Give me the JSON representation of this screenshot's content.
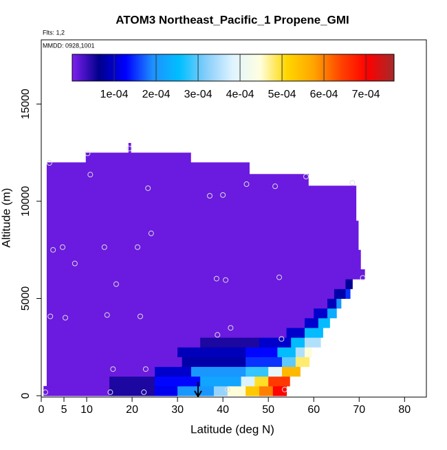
{
  "chart_data": {
    "type": "heatmap",
    "title": "ATOM3 Northeast_Pacific_1 Propene_GMI",
    "flights_note": "Flts: 1,2",
    "date_note": "MMDD: 0928,1001",
    "xlabel": "Latitude (deg N)",
    "ylabel": "Altitude (m)",
    "xlim": [
      0,
      84.8
    ],
    "ylim": [
      0,
      18300
    ],
    "xticks": [
      0,
      5,
      10,
      20,
      30,
      40,
      50,
      60,
      70,
      80
    ],
    "yticks": [
      0,
      5000,
      10000,
      15000
    ],
    "colorbar_lim": [
      0,
      0.000767
    ],
    "colorbar_ticks": [
      {
        "value": 0.0001,
        "label": "1e-04"
      },
      {
        "value": 0.0002,
        "label": "2e-04"
      },
      {
        "value": 0.0003,
        "label": "3e-04"
      },
      {
        "value": 0.0004,
        "label": "4e-04"
      },
      {
        "value": 0.0005,
        "label": "5e-04"
      },
      {
        "value": 0.0006,
        "label": "6e-04"
      },
      {
        "value": 0.0007,
        "label": "7e-04"
      }
    ],
    "colors": [
      "#7f1fef",
      "#00008b",
      "#0000ff",
      "#1e90ff",
      "#00bfff",
      "#87cefa",
      "#e0f4ff",
      "#ffffe0",
      "#ffd700",
      "#ffa500",
      "#ff4500",
      "#ff0000",
      "#a52a2a"
    ],
    "rows": [
      {
        "alt": [
          0,
          500
        ],
        "cells": [
          [
            0.5,
            15,
            1e-05
          ],
          [
            15,
            25,
            5e-05
          ],
          [
            25,
            30,
            0.00012
          ],
          [
            30,
            38,
            0.0002
          ],
          [
            38,
            41,
            0.00033
          ],
          [
            41,
            45,
            0.00045
          ],
          [
            45,
            48,
            0.00053
          ],
          [
            48,
            51,
            0.0006
          ],
          [
            51,
            54,
            0.0007
          ]
        ]
      },
      {
        "alt": [
          500,
          1000
        ],
        "cells": [
          [
            1.2,
            15,
            1e-05
          ],
          [
            15,
            25,
            5e-05
          ],
          [
            25,
            35,
            0.00013
          ],
          [
            35,
            44,
            0.00022
          ],
          [
            44,
            47,
            0.00038
          ],
          [
            47,
            50,
            0.0005
          ],
          [
            50,
            54.7,
            0.00065
          ]
        ]
      },
      {
        "alt": [
          1000,
          1500
        ],
        "cells": [
          [
            1.2,
            25,
            1e-05
          ],
          [
            25,
            33,
            0.0001
          ],
          [
            33,
            45,
            0.0002
          ],
          [
            45,
            50,
            0.00028
          ],
          [
            50,
            53,
            0.0004
          ],
          [
            53,
            57,
            0.00055
          ]
        ]
      },
      {
        "alt": [
          1500,
          2000
        ],
        "cells": [
          [
            1.2,
            31,
            1e-05
          ],
          [
            31,
            45,
            8e-05
          ],
          [
            45,
            53,
            0.00015
          ],
          [
            53,
            56,
            0.0003
          ],
          [
            56,
            59,
            0.00048
          ]
        ]
      },
      {
        "alt": [
          2000,
          2500
        ],
        "cells": [
          [
            1.2,
            30,
            1e-05
          ],
          [
            30,
            45,
            9e-05
          ],
          [
            45,
            52,
            0.00013
          ],
          [
            52,
            56,
            0.00025
          ],
          [
            56,
            58,
            0.00035
          ],
          [
            58,
            59.5,
            0.00045
          ]
        ]
      },
      {
        "alt": [
          2500,
          3000
        ],
        "cells": [
          [
            1.2,
            35,
            1e-05
          ],
          [
            35,
            48,
            5e-05
          ],
          [
            48,
            55,
            0.0001
          ],
          [
            55,
            58,
            0.00025
          ],
          [
            58,
            61.5,
            0.00035
          ]
        ]
      },
      {
        "alt": [
          3000,
          3500
        ],
        "cells": [
          [
            1.2,
            54,
            1e-05
          ],
          [
            54,
            58,
            0.0001
          ],
          [
            58,
            62,
            0.00025
          ]
        ]
      },
      {
        "alt": [
          3500,
          4000
        ],
        "cells": [
          [
            1.2,
            58,
            1e-05
          ],
          [
            58,
            61,
            0.0001
          ],
          [
            61,
            63.5,
            0.00025
          ]
        ]
      },
      {
        "alt": [
          4000,
          4500
        ],
        "cells": [
          [
            1.2,
            60,
            1e-05
          ],
          [
            60,
            63,
            0.0001
          ],
          [
            63,
            65,
            0.00023
          ]
        ]
      },
      {
        "alt": [
          4500,
          5000
        ],
        "cells": [
          [
            1.2,
            63,
            1e-05
          ],
          [
            63,
            65,
            9e-05
          ],
          [
            65,
            66,
            0.0002
          ]
        ]
      },
      {
        "alt": [
          5000,
          5500
        ],
        "cells": [
          [
            1.2,
            64.5,
            1e-05
          ],
          [
            64.5,
            67,
            8e-05
          ],
          [
            67,
            68,
            0.00015
          ]
        ]
      },
      {
        "alt": [
          5500,
          6000
        ],
        "cells": [
          [
            1.2,
            67,
            1e-05
          ],
          [
            67,
            68.5,
            7e-05
          ]
        ]
      },
      {
        "alt": [
          6000,
          6500
        ],
        "cells": [
          [
            1.2,
            71.2,
            1e-05
          ]
        ]
      },
      {
        "alt": [
          6500,
          7500
        ],
        "cells": [
          [
            1.2,
            70.3,
            1e-05
          ]
        ]
      },
      {
        "alt": [
          7500,
          9000
        ],
        "cells": [
          [
            1.2,
            69.8,
            1e-05
          ]
        ]
      },
      {
        "alt": [
          9000,
          10800
        ],
        "cells": [
          [
            1.2,
            69.3,
            1e-05
          ]
        ]
      },
      {
        "alt": [
          10800,
          11400
        ],
        "cells": [
          [
            1.2,
            58.8,
            1e-05
          ]
        ]
      },
      {
        "alt": [
          11400,
          12000
        ],
        "cells": [
          [
            1.2,
            45.8,
            1e-05
          ]
        ]
      },
      {
        "alt": [
          12000,
          12500
        ],
        "cells": [
          [
            9.8,
            32.9,
            1e-05
          ]
        ]
      },
      {
        "alt": [
          12500,
          13000
        ],
        "cells": [
          [
            19.2,
            19.7,
            1e-05
          ]
        ]
      }
    ],
    "points": {
      "lat": [
        0.9,
        15.2,
        22.6,
        41,
        53.6,
        15.8,
        23,
        52.9,
        38.8,
        41.7,
        2,
        5.3,
        14.5,
        21.8,
        16.5,
        38.6,
        40.6,
        52.4,
        70.8,
        7.4,
        2.6,
        4.7,
        13.9,
        21.2,
        24.2,
        37.1,
        40,
        23.5,
        45.2,
        51.5,
        58.3,
        68.5,
        10.8,
        1.8,
        10.2,
        19.4
      ],
      "alt": [
        180,
        180,
        180,
        320,
        320,
        1370,
        1370,
        2920,
        3130,
        3490,
        4080,
        4010,
        4150,
        4080,
        5740,
        6020,
        5950,
        6090,
        6060,
        6800,
        7500,
        7640,
        7640,
        7640,
        8350,
        10280,
        10320,
        10670,
        10880,
        10770,
        11270,
        10950,
        11370,
        11970,
        12460,
        12710
      ]
    }
  }
}
